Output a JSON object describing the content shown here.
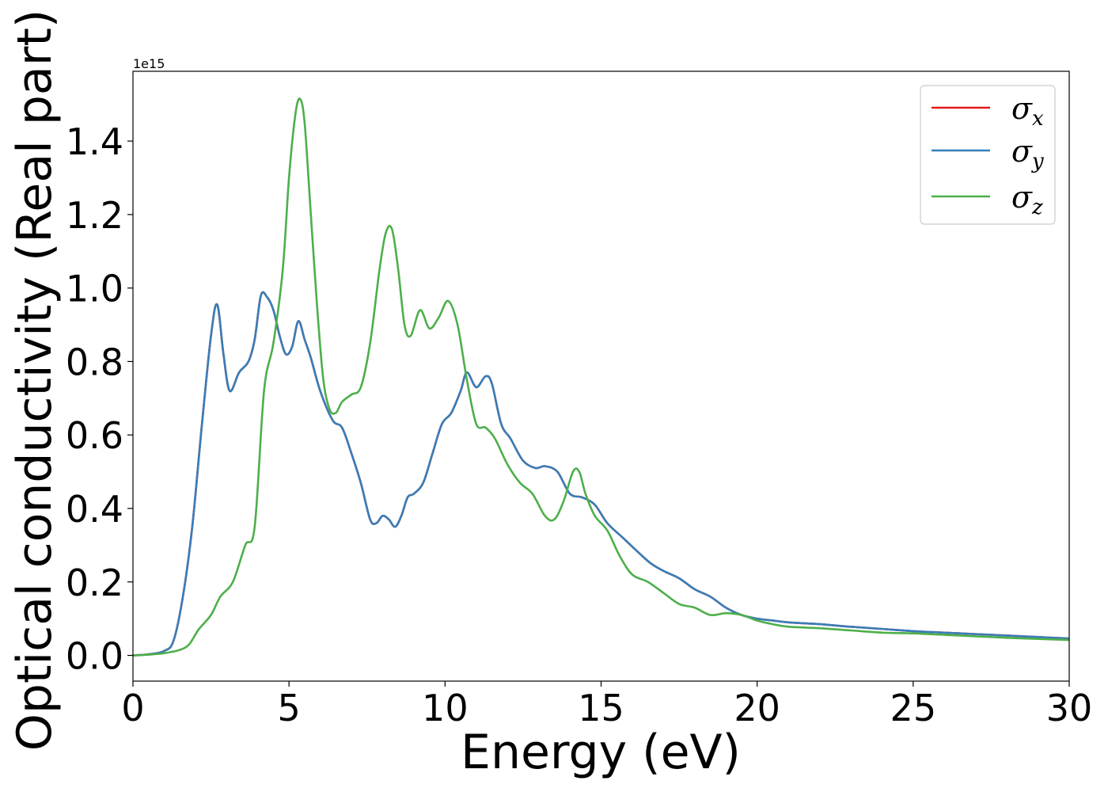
{
  "chart_data": {
    "type": "line",
    "xlabel": "Energy (eV)",
    "ylabel": "Optical conductivity (Real part)",
    "y_offset_label": "1e15",
    "xlim": [
      0,
      30
    ],
    "ylim": [
      -0.07,
      1.59
    ],
    "y_scale_factor": 1000000000000000.0,
    "xticks": [
      0,
      5,
      10,
      15,
      20,
      25,
      30
    ],
    "xtick_labels": [
      "0",
      "5",
      "10",
      "15",
      "20",
      "25",
      "30"
    ],
    "yticks": [
      0.0,
      0.2,
      0.4,
      0.6,
      0.8,
      1.0,
      1.2,
      1.4
    ],
    "ytick_labels": [
      "0.0",
      "0.2",
      "0.4",
      "0.6",
      "0.8",
      "1.0",
      "1.2",
      "1.4"
    ],
    "grid": false,
    "legend_position": "top-right",
    "series": [
      {
        "name": "σx",
        "legend_symbol": "σ",
        "legend_sub": "x",
        "color": "#e41a1c",
        "x": [
          0,
          0.5,
          1.0,
          1.3,
          1.6,
          1.9,
          2.2,
          2.5,
          2.7,
          2.9,
          3.1,
          3.4,
          3.7,
          3.9,
          4.1,
          4.3,
          4.5,
          4.7,
          4.9,
          5.1,
          5.3,
          5.5,
          5.7,
          6.0,
          6.4,
          6.7,
          7.0,
          7.3,
          7.6,
          7.8,
          8.0,
          8.2,
          8.4,
          8.6,
          8.8,
          9.0,
          9.3,
          9.6,
          9.9,
          10.2,
          10.5,
          10.7,
          11.0,
          11.3,
          11.5,
          11.8,
          12.1,
          12.5,
          12.9,
          13.2,
          13.6,
          14.0,
          14.4,
          14.8,
          15.2,
          15.7,
          16.2,
          16.6,
          17.0,
          17.5,
          18.0,
          18.5,
          19.0,
          19.5,
          20.0,
          20.5,
          21.0,
          22.0,
          23.0,
          24.0,
          25.0,
          26.0,
          27.0,
          28.0,
          29.0,
          30.0
        ],
        "y": [
          0.0,
          0.003,
          0.012,
          0.04,
          0.16,
          0.35,
          0.62,
          0.87,
          0.955,
          0.82,
          0.72,
          0.77,
          0.8,
          0.86,
          0.98,
          0.975,
          0.94,
          0.87,
          0.82,
          0.84,
          0.91,
          0.86,
          0.81,
          0.72,
          0.64,
          0.62,
          0.55,
          0.47,
          0.37,
          0.36,
          0.38,
          0.37,
          0.35,
          0.38,
          0.43,
          0.44,
          0.47,
          0.55,
          0.63,
          0.66,
          0.72,
          0.77,
          0.73,
          0.76,
          0.74,
          0.63,
          0.59,
          0.53,
          0.51,
          0.515,
          0.5,
          0.44,
          0.43,
          0.41,
          0.36,
          0.32,
          0.28,
          0.25,
          0.23,
          0.21,
          0.18,
          0.16,
          0.13,
          0.11,
          0.1,
          0.095,
          0.09,
          0.085,
          0.078,
          0.072,
          0.066,
          0.062,
          0.058,
          0.054,
          0.05,
          0.046
        ]
      },
      {
        "name": "σy",
        "legend_symbol": "σ",
        "legend_sub": "y",
        "color": "#377eb8",
        "x": [
          0,
          0.5,
          1.0,
          1.3,
          1.6,
          1.9,
          2.2,
          2.5,
          2.7,
          2.9,
          3.1,
          3.4,
          3.7,
          3.9,
          4.1,
          4.3,
          4.5,
          4.7,
          4.9,
          5.1,
          5.3,
          5.5,
          5.7,
          6.0,
          6.4,
          6.7,
          7.0,
          7.3,
          7.6,
          7.8,
          8.0,
          8.2,
          8.4,
          8.6,
          8.8,
          9.0,
          9.3,
          9.6,
          9.9,
          10.2,
          10.5,
          10.7,
          11.0,
          11.3,
          11.5,
          11.8,
          12.1,
          12.5,
          12.9,
          13.2,
          13.6,
          14.0,
          14.4,
          14.8,
          15.2,
          15.7,
          16.2,
          16.6,
          17.0,
          17.5,
          18.0,
          18.5,
          19.0,
          19.5,
          20.0,
          20.5,
          21.0,
          22.0,
          23.0,
          24.0,
          25.0,
          26.0,
          27.0,
          28.0,
          29.0,
          30.0
        ],
        "y": [
          0.0,
          0.003,
          0.012,
          0.04,
          0.16,
          0.35,
          0.62,
          0.87,
          0.955,
          0.82,
          0.72,
          0.77,
          0.8,
          0.86,
          0.98,
          0.975,
          0.94,
          0.87,
          0.82,
          0.84,
          0.91,
          0.86,
          0.81,
          0.72,
          0.64,
          0.62,
          0.55,
          0.47,
          0.37,
          0.36,
          0.38,
          0.37,
          0.35,
          0.38,
          0.43,
          0.44,
          0.47,
          0.55,
          0.63,
          0.66,
          0.72,
          0.77,
          0.73,
          0.76,
          0.74,
          0.63,
          0.59,
          0.53,
          0.51,
          0.515,
          0.5,
          0.44,
          0.43,
          0.41,
          0.36,
          0.32,
          0.28,
          0.25,
          0.23,
          0.21,
          0.18,
          0.16,
          0.13,
          0.11,
          0.1,
          0.095,
          0.09,
          0.085,
          0.078,
          0.072,
          0.066,
          0.062,
          0.058,
          0.054,
          0.05,
          0.046
        ]
      },
      {
        "name": "σz",
        "legend_symbol": "σ",
        "legend_sub": "z",
        "color": "#4daf4a",
        "x": [
          0,
          0.5,
          1.0,
          1.5,
          1.8,
          2.1,
          2.5,
          2.8,
          3.2,
          3.6,
          3.9,
          4.2,
          4.5,
          4.8,
          5.0,
          5.2,
          5.35,
          5.5,
          5.7,
          5.9,
          6.1,
          6.3,
          6.5,
          6.7,
          7.0,
          7.3,
          7.6,
          7.9,
          8.1,
          8.3,
          8.5,
          8.7,
          8.9,
          9.2,
          9.5,
          9.8,
          10.1,
          10.4,
          10.7,
          11.0,
          11.3,
          11.6,
          12.0,
          12.4,
          12.8,
          13.2,
          13.5,
          13.8,
          14.1,
          14.3,
          14.5,
          14.8,
          15.2,
          15.6,
          16.0,
          16.5,
          17.0,
          17.5,
          18.0,
          18.5,
          19.0,
          19.5,
          20.0,
          20.5,
          21.0,
          22.0,
          23.0,
          24.0,
          25.0,
          26.0,
          27.0,
          28.0,
          29.0,
          30.0
        ],
        "y": [
          0.0,
          0.002,
          0.006,
          0.015,
          0.03,
          0.07,
          0.11,
          0.16,
          0.2,
          0.3,
          0.35,
          0.72,
          0.85,
          1.05,
          1.3,
          1.47,
          1.515,
          1.45,
          1.2,
          0.95,
          0.75,
          0.67,
          0.66,
          0.69,
          0.71,
          0.73,
          0.85,
          1.05,
          1.15,
          1.16,
          1.05,
          0.9,
          0.87,
          0.94,
          0.89,
          0.92,
          0.965,
          0.9,
          0.75,
          0.63,
          0.62,
          0.59,
          0.52,
          0.47,
          0.44,
          0.38,
          0.37,
          0.42,
          0.5,
          0.5,
          0.44,
          0.38,
          0.34,
          0.27,
          0.22,
          0.2,
          0.17,
          0.14,
          0.13,
          0.11,
          0.115,
          0.11,
          0.095,
          0.085,
          0.078,
          0.074,
          0.068,
          0.062,
          0.06,
          0.056,
          0.052,
          0.048,
          0.045,
          0.042
        ]
      }
    ]
  }
}
